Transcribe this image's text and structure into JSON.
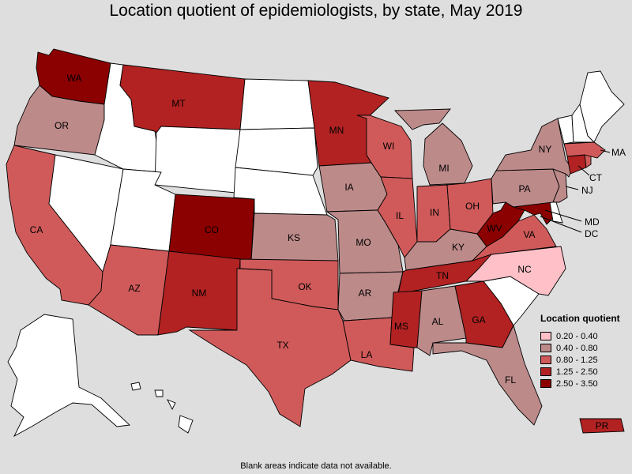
{
  "title": "Location quotient of epidemiologists, by state, May 2019",
  "footnote": "Blank areas indicate data not available.",
  "legend": {
    "title": "Location quotient",
    "items": [
      {
        "label": "0.20 - 0.40",
        "color": "#ffc0c8"
      },
      {
        "label": "0.40 - 0.80",
        "color": "#bd8a8a"
      },
      {
        "label": "0.80 - 1.25",
        "color": "#d05a5a"
      },
      {
        "label": "1.25 - 2.50",
        "color": "#b22222"
      },
      {
        "label": "2.50 - 3.50",
        "color": "#8b0000"
      }
    ]
  },
  "no_data_color": "#ffffff",
  "states": {
    "WA": {
      "label": "WA",
      "class": "2.50 - 3.50"
    },
    "OR": {
      "label": "OR",
      "class": "0.40 - 0.80"
    },
    "CA": {
      "label": "CA",
      "class": "0.80 - 1.25"
    },
    "NV": {
      "label": "",
      "class": "no data"
    },
    "ID": {
      "label": "",
      "class": "no data"
    },
    "MT": {
      "label": "MT",
      "class": "1.25 - 2.50"
    },
    "WY": {
      "label": "",
      "class": "no data"
    },
    "UT": {
      "label": "",
      "class": "no data"
    },
    "AZ": {
      "label": "AZ",
      "class": "0.80 - 1.25"
    },
    "CO": {
      "label": "CO",
      "class": "2.50 - 3.50"
    },
    "NM": {
      "label": "NM",
      "class": "1.25 - 2.50"
    },
    "ND": {
      "label": "",
      "class": "no data"
    },
    "SD": {
      "label": "",
      "class": "no data"
    },
    "NE": {
      "label": "",
      "class": "no data"
    },
    "KS": {
      "label": "KS",
      "class": "0.40 - 0.80"
    },
    "OK": {
      "label": "OK",
      "class": "0.80 - 1.25"
    },
    "TX": {
      "label": "TX",
      "class": "0.80 - 1.25"
    },
    "MN": {
      "label": "MN",
      "class": "1.25 - 2.50"
    },
    "IA": {
      "label": "IA",
      "class": "0.40 - 0.80"
    },
    "MO": {
      "label": "MO",
      "class": "0.40 - 0.80"
    },
    "AR": {
      "label": "AR",
      "class": "0.40 - 0.80"
    },
    "LA": {
      "label": "LA",
      "class": "0.80 - 1.25"
    },
    "WI": {
      "label": "WI",
      "class": "0.80 - 1.25"
    },
    "IL": {
      "label": "IL",
      "class": "0.80 - 1.25"
    },
    "MI": {
      "label": "MI",
      "class": "0.40 - 0.80"
    },
    "IN": {
      "label": "IN",
      "class": "0.80 - 1.25"
    },
    "OH": {
      "label": "OH",
      "class": "0.80 - 1.25"
    },
    "KY": {
      "label": "KY",
      "class": "0.40 - 0.80"
    },
    "TN": {
      "label": "TN",
      "class": "1.25 - 2.50"
    },
    "MS": {
      "label": "MS",
      "class": "1.25 - 2.50"
    },
    "AL": {
      "label": "AL",
      "class": "0.40 - 0.80"
    },
    "GA": {
      "label": "GA",
      "class": "1.25 - 2.50"
    },
    "FL": {
      "label": "FL",
      "class": "0.40 - 0.80"
    },
    "SC": {
      "label": "",
      "class": "no data"
    },
    "NC": {
      "label": "NC",
      "class": "0.20 - 0.40"
    },
    "VA": {
      "label": "VA",
      "class": "0.80 - 1.25"
    },
    "WV": {
      "label": "WV",
      "class": "2.50 - 3.50"
    },
    "MD": {
      "label": "MD",
      "class": "2.50 - 3.50"
    },
    "DC": {
      "label": "DC",
      "class": "2.50 - 3.50"
    },
    "DE": {
      "label": "",
      "class": "no data"
    },
    "PA": {
      "label": "PA",
      "class": "0.40 - 0.80"
    },
    "NJ": {
      "label": "NJ",
      "class": "0.40 - 0.80"
    },
    "NY": {
      "label": "NY",
      "class": "0.40 - 0.80"
    },
    "CT": {
      "label": "CT",
      "class": "1.25 - 2.50"
    },
    "RI": {
      "label": "",
      "class": "0.80 - 1.25"
    },
    "MA": {
      "label": "MA",
      "class": "0.80 - 1.25"
    },
    "VT": {
      "label": "",
      "class": "no data"
    },
    "NH": {
      "label": "",
      "class": "no data"
    },
    "ME": {
      "label": "",
      "class": "no data"
    },
    "AK": {
      "label": "",
      "class": "no data"
    },
    "HI": {
      "label": "",
      "class": "no data"
    },
    "PR": {
      "label": "PR",
      "class": "1.25 - 2.50"
    }
  }
}
